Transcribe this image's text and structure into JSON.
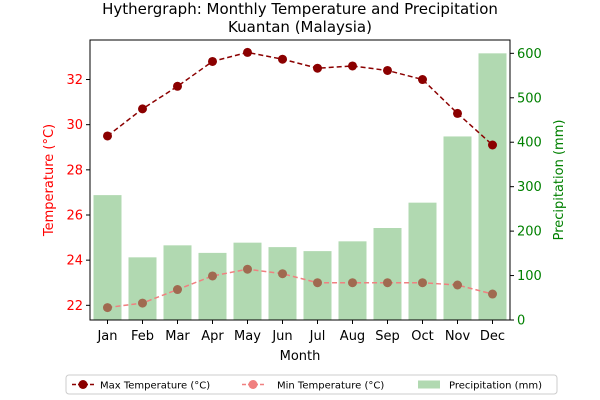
{
  "chart_data": {
    "type": "bar",
    "title": "Hythergraph: Monthly Temperature and Precipitation",
    "subtitle": "Kuantan (Malaysia)",
    "xlabel": "Month",
    "ylabel_left": "Temperature (°C)",
    "ylabel_right": "Precipitation (mm)",
    "categories": [
      "Jan",
      "Feb",
      "Mar",
      "Apr",
      "May",
      "Jun",
      "Jul",
      "Aug",
      "Sep",
      "Oct",
      "Nov",
      "Dec"
    ],
    "y_left_lim": [
      21.35,
      33.75
    ],
    "y_left_ticks": [
      22,
      24,
      26,
      28,
      30,
      32
    ],
    "y_right_lim": [
      0,
      630
    ],
    "y_right_ticks": [
      0,
      100,
      200,
      300,
      400,
      500,
      600
    ],
    "series": [
      {
        "name": "Max Temperature (°C)",
        "kind": "line",
        "axis": "left",
        "color": "#8b0000",
        "line_style": "dashed",
        "values": [
          29.5,
          30.7,
          31.7,
          32.8,
          33.2,
          32.9,
          32.5,
          32.6,
          32.4,
          32.0,
          30.5,
          29.1
        ]
      },
      {
        "name": "Min Temperature (°C)",
        "kind": "line",
        "axis": "left",
        "color": "#f08080",
        "marker_color": "#a06a50",
        "line_style": "dashed",
        "values": [
          21.9,
          22.1,
          22.7,
          23.3,
          23.6,
          23.4,
          23.0,
          23.0,
          23.0,
          23.0,
          22.9,
          22.5
        ]
      },
      {
        "name": "Precipitation (mm)",
        "kind": "bar",
        "axis": "right",
        "color": "#b1d9b1",
        "values": [
          281,
          141,
          168,
          151,
          174,
          164,
          155,
          177,
          207,
          264,
          413,
          600
        ]
      }
    ],
    "legend_position": "bottom-center",
    "grid": false,
    "colors": {
      "left_axis": "#ff0000",
      "right_axis": "#008000",
      "axis": "#000000"
    }
  }
}
